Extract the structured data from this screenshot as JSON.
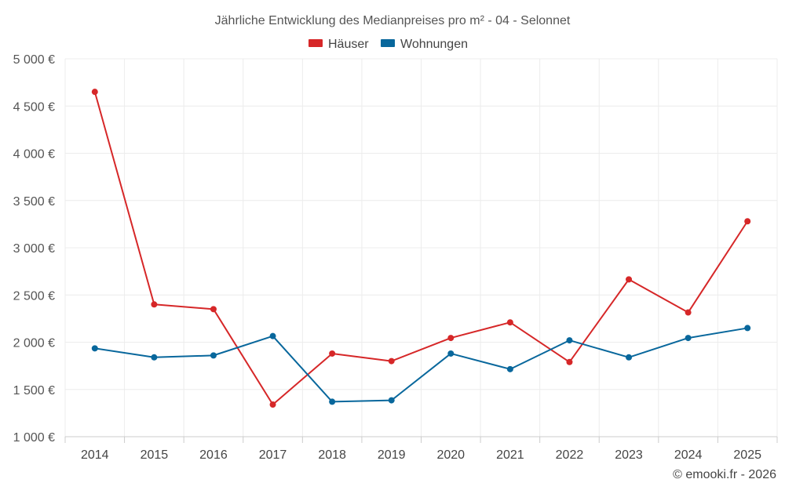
{
  "chart_data": {
    "type": "line",
    "title": "Jährliche Entwicklung des Medianpreises pro m² - 04 - Selonnet",
    "categories": [
      "2014",
      "2015",
      "2016",
      "2017",
      "2018",
      "2019",
      "2020",
      "2021",
      "2022",
      "2023",
      "2024",
      "2025"
    ],
    "series": [
      {
        "name": "Häuser",
        "color": "#d62728",
        "values": [
          4650,
          2400,
          2350,
          1340,
          1880,
          1800,
          2045,
          2210,
          1790,
          2665,
          2315,
          3280
        ]
      },
      {
        "name": "Wohnungen",
        "color": "#08679c",
        "values": [
          1935,
          1840,
          1860,
          2065,
          1370,
          1385,
          1880,
          1715,
          2020,
          1840,
          2045,
          2150
        ]
      }
    ],
    "ylim": [
      1000,
      5000
    ],
    "yticks": [
      1000,
      1500,
      2000,
      2500,
      3000,
      3500,
      4000,
      4500,
      5000
    ],
    "ytick_labels": [
      "1 000 €",
      "1 500 €",
      "2 000 €",
      "2 500 €",
      "3 000 €",
      "3 500 €",
      "4 000 €",
      "4 500 €",
      "5 000 €"
    ],
    "grid": true,
    "legend_position": "top-center",
    "xlabel": "",
    "ylabel": ""
  },
  "credit": "© emooki.fr - 2026"
}
